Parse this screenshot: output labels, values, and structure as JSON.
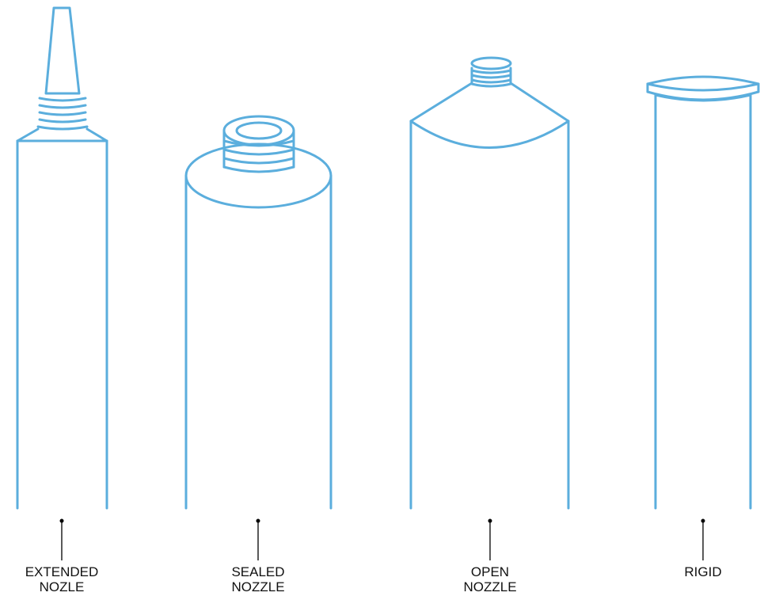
{
  "colors": {
    "outline": "#5BAEDD",
    "leader": "#000000",
    "text": "#111111",
    "background": "#ffffff"
  },
  "tubes": [
    {
      "id": "extended-nozle",
      "lines": [
        "EXTENDED",
        "NOZLE"
      ]
    },
    {
      "id": "sealed-nozzle",
      "lines": [
        "SEALED",
        "NOZZLE"
      ]
    },
    {
      "id": "open-nozzle",
      "lines": [
        "OPEN",
        "NOZZLE"
      ]
    },
    {
      "id": "rigid",
      "lines": [
        "RIGID"
      ]
    }
  ]
}
